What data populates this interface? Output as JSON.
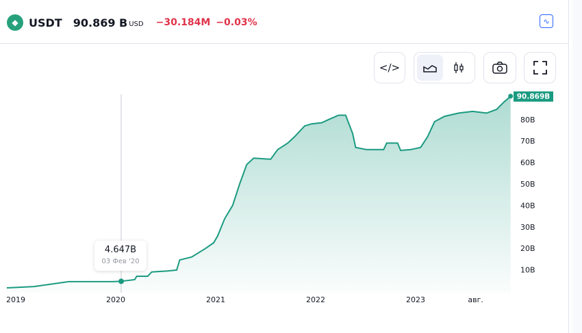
{
  "header": {
    "symbol": "USDT",
    "value": "90.869 B",
    "currency": "USD",
    "change": "−30.184M",
    "change_pct": "−0.03%",
    "logo_icon": "tether-icon",
    "chart_icon": "line-chart-icon"
  },
  "toolbar": {
    "embed_icon": "</>",
    "area_icon": "area-chart-icon",
    "candle_icon": "candlestick-icon",
    "camera_icon": "camera-icon",
    "fullscreen_icon": "fullscreen-icon"
  },
  "tooltip": {
    "value": "4.647B",
    "date": "03 Фев '20"
  },
  "colors": {
    "line": "#1a9a80",
    "neg": "#e0344a"
  },
  "chart_data": {
    "type": "area",
    "title": "USDT",
    "last_value_label": "90.869B",
    "y_ticks": [
      "10B",
      "20B",
      "30B",
      "40B",
      "50B",
      "60B",
      "70B",
      "80B"
    ],
    "y_tick_values": [
      10,
      20,
      30,
      40,
      50,
      60,
      70,
      80
    ],
    "x_ticks": [
      "2019",
      "2020",
      "2021",
      "2022",
      "2023",
      "авг."
    ],
    "x_tick_values": [
      2019,
      2020,
      2021,
      2022,
      2023,
      2023.6
    ],
    "x": [
      2018.91,
      2019.18,
      2019.53,
      2019.97,
      2020.05,
      2020.19,
      2020.21,
      2020.32,
      2020.36,
      2020.52,
      2020.61,
      2020.64,
      2020.76,
      2020.9,
      2020.98,
      2021.02,
      2021.09,
      2021.17,
      2021.24,
      2021.31,
      2021.38,
      2021.55,
      2021.62,
      2021.72,
      2021.79,
      2021.89,
      2021.96,
      2022.06,
      2022.13,
      2022.23,
      2022.3,
      2022.37,
      2022.4,
      2022.51,
      2022.68,
      2022.71,
      2022.82,
      2022.85,
      2022.95,
      2023.05,
      2023.12,
      2023.19,
      2023.29,
      2023.43,
      2023.57,
      2023.71,
      2023.81,
      2023.88,
      2023.95
    ],
    "values": [
      1.6,
      2.2,
      4.5,
      4.5,
      4.65,
      5.4,
      7,
      7,
      9,
      9.5,
      9.9,
      14.6,
      16,
      20,
      22.6,
      25.8,
      33.8,
      40,
      50,
      59,
      62,
      61.5,
      66,
      69,
      72,
      77,
      78,
      78.5,
      80,
      82,
      82,
      73.5,
      67,
      66,
      66,
      69,
      69,
      65.6,
      66,
      67,
      72,
      79,
      81.5,
      83,
      83.8,
      83,
      84.7,
      88,
      90.87
    ],
    "ylabel": "",
    "xlabel": ""
  }
}
